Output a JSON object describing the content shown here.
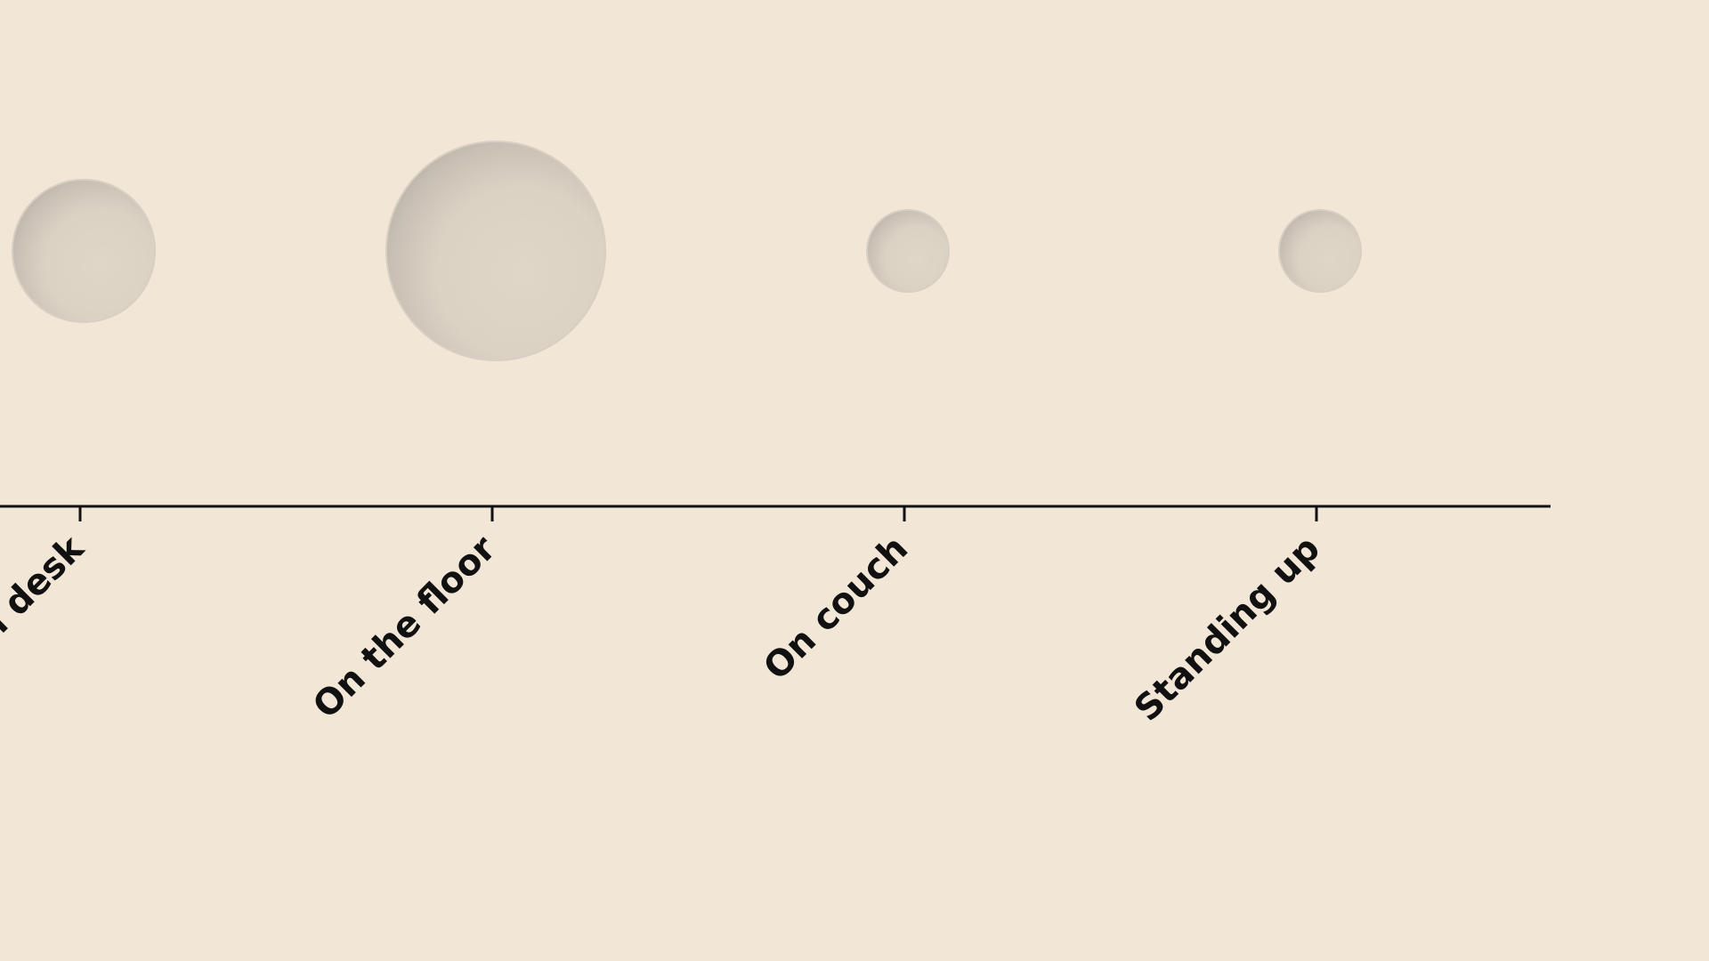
{
  "chart_data": {
    "type": "scatter",
    "encoding": "bubble-size",
    "categories": [
      "On desk",
      "On the floor",
      "On couch",
      "Standing up"
    ],
    "values": [
      100,
      236,
      33,
      33
    ],
    "title": "",
    "xlabel": "",
    "ylabel": "",
    "legend": "none",
    "grid": false
  },
  "colors": {
    "background": "#f2e6d7",
    "bubble_fill": "#e0d6c8",
    "bubble_shade": "#b9b0a6",
    "axis": "#111111",
    "text": "#111111"
  }
}
